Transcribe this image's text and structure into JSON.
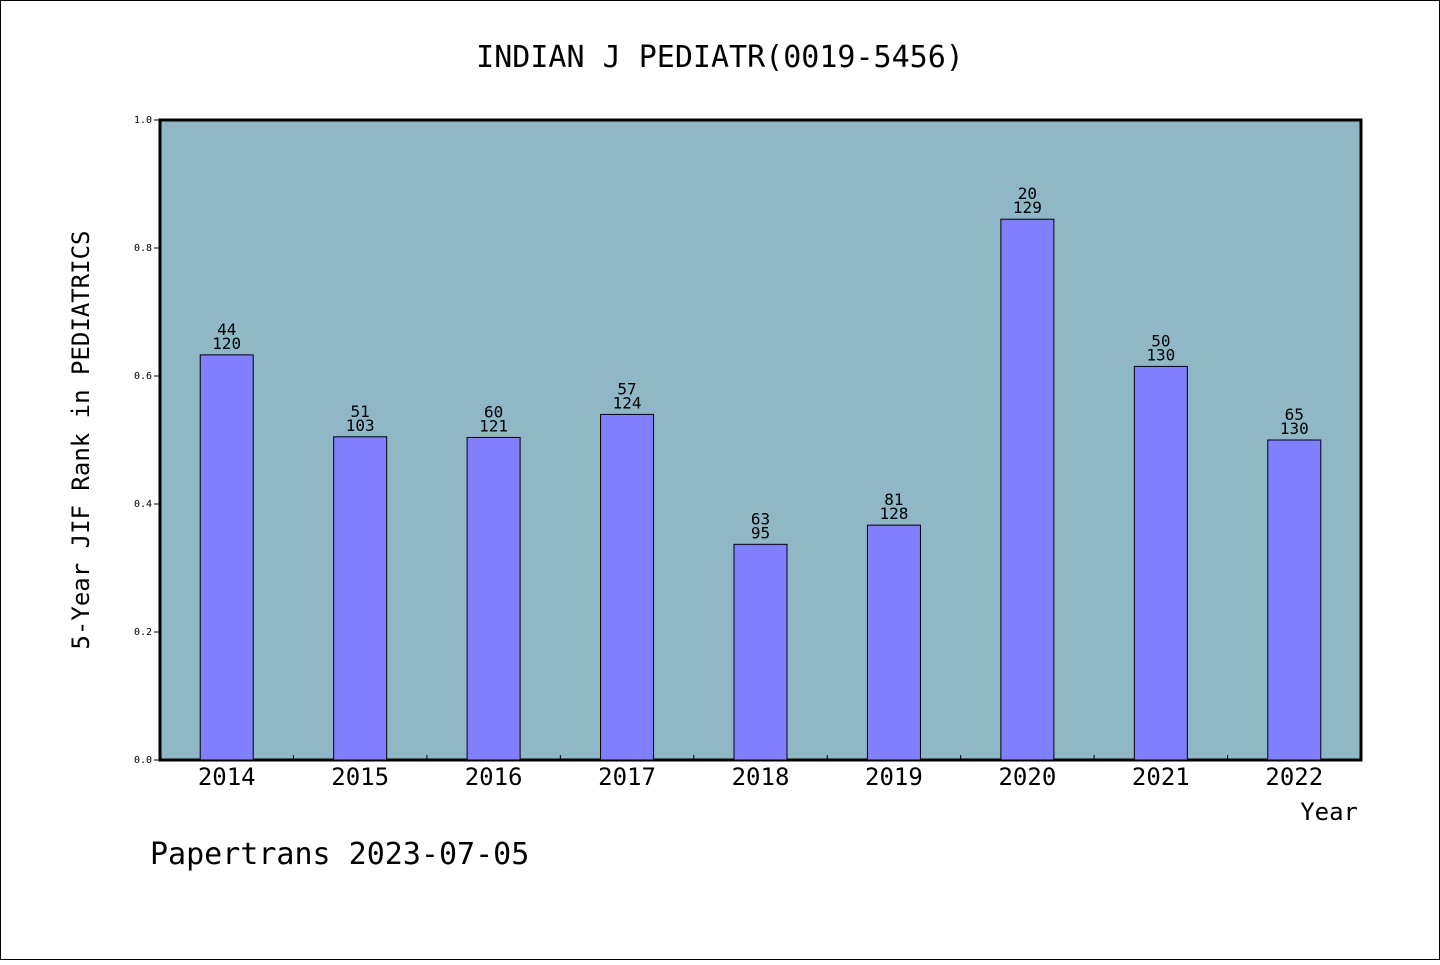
{
  "chart_data": {
    "type": "bar",
    "title": "INDIAN J PEDIATR(0019-5456)",
    "xlabel": "Year",
    "ylabel": "5-Year JIF Rank in PEDIATRICS",
    "categories": [
      "2014",
      "2015",
      "2016",
      "2017",
      "2018",
      "2019",
      "2020",
      "2021",
      "2022"
    ],
    "values": [
      0.633,
      0.505,
      0.504,
      0.54,
      0.337,
      0.367,
      0.845,
      0.615,
      0.5
    ],
    "labels_top": [
      "44",
      "51",
      "60",
      "57",
      "63",
      "81",
      "20",
      "50",
      "65"
    ],
    "labels_bottom": [
      "120",
      "103",
      "121",
      "124",
      "95",
      "128",
      "129",
      "130",
      "130"
    ],
    "ylim": [
      0.0,
      1.0
    ],
    "yticks": [
      "0.0",
      "0.2",
      "0.4",
      "0.6",
      "0.8",
      "1.0"
    ],
    "grid": false,
    "colors": {
      "plot_background": "#8fb7c6",
      "bar_fill": "#8080ff",
      "bar_stroke": "#000000"
    }
  },
  "footer": "Papertrans 2023-07-05"
}
